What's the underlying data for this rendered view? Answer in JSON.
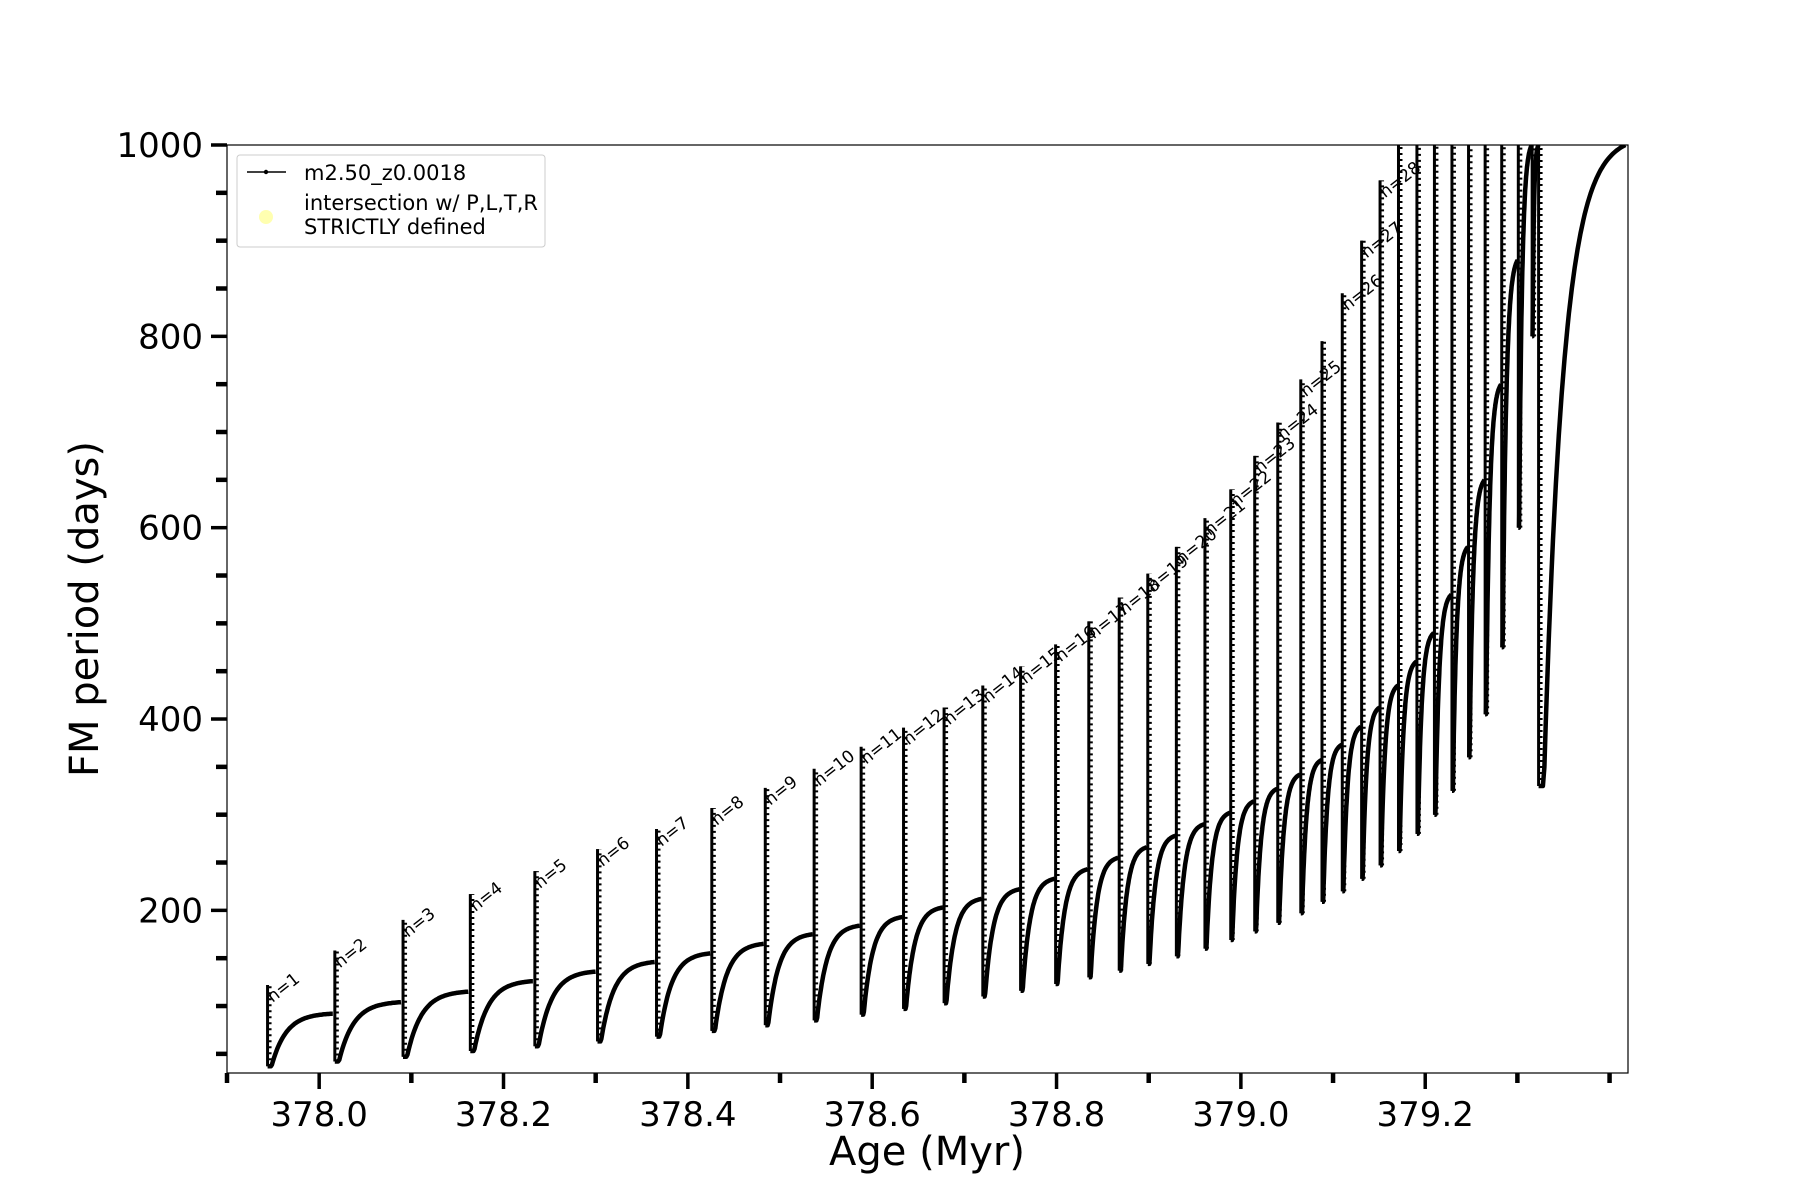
{
  "chart_data": {
    "type": "line",
    "xlabel": "Age (Myr)",
    "ylabel": "FM period (days)",
    "xlim": [
      377.9,
      379.42
    ],
    "ylim": [
      30,
      1000
    ],
    "xticks": [
      378.0,
      378.2,
      378.4,
      378.6,
      378.8,
      379.0,
      379.2
    ],
    "xtick_labels": [
      "378.0",
      "378.2",
      "378.4",
      "378.6",
      "378.8",
      "379.0",
      "379.2"
    ],
    "yticks": [
      200,
      400,
      600,
      800,
      1000
    ],
    "ytick_labels": [
      "200",
      "400",
      "600",
      "800",
      "1000"
    ],
    "grid": false,
    "legend": {
      "placement": "upper-left",
      "entries": [
        {
          "label": "m2.50_z0.0018",
          "marker": "line-dot",
          "color": "#000000"
        },
        {
          "label": "intersection w/ P,L,T,R STRICTLY defined",
          "marker": "circle",
          "color": "#ffffb0",
          "lines": [
            "intersection w/ P,L,T,R",
            "STRICTLY defined"
          ]
        }
      ]
    },
    "series": [
      {
        "name": "m2.50_z0.0018",
        "color": "#000000",
        "pulses": [
          {
            "n": 1,
            "age": 377.944,
            "base": 37,
            "peak": 122,
            "plateau": 92
          },
          {
            "n": 2,
            "age": 378.017,
            "base": 42,
            "peak": 158,
            "plateau": 104
          },
          {
            "n": 3,
            "age": 378.091,
            "base": 47,
            "peak": 190,
            "plateau": 115
          },
          {
            "n": 4,
            "age": 378.164,
            "base": 53,
            "peak": 217,
            "plateau": 126
          },
          {
            "n": 5,
            "age": 378.234,
            "base": 58,
            "peak": 241,
            "plateau": 136
          },
          {
            "n": 6,
            "age": 378.302,
            "base": 63,
            "peak": 264,
            "plateau": 146
          },
          {
            "n": 7,
            "age": 378.366,
            "base": 68,
            "peak": 285,
            "plateau": 155
          },
          {
            "n": 8,
            "age": 378.426,
            "base": 74,
            "peak": 307,
            "plateau": 165
          },
          {
            "n": 9,
            "age": 378.484,
            "base": 80,
            "peak": 328,
            "plateau": 175
          },
          {
            "n": 10,
            "age": 378.537,
            "base": 85,
            "peak": 348,
            "plateau": 184
          },
          {
            "n": 11,
            "age": 378.588,
            "base": 91,
            "peak": 371,
            "plateau": 193
          },
          {
            "n": 12,
            "age": 378.634,
            "base": 97,
            "peak": 391,
            "plateau": 203
          },
          {
            "n": 13,
            "age": 378.678,
            "base": 103,
            "peak": 412,
            "plateau": 212
          },
          {
            "n": 14,
            "age": 378.72,
            "base": 110,
            "peak": 435,
            "plateau": 222
          },
          {
            "n": 15,
            "age": 378.761,
            "base": 116,
            "peak": 455,
            "plateau": 233
          },
          {
            "n": 16,
            "age": 378.799,
            "base": 123,
            "peak": 478,
            "plateau": 243
          },
          {
            "n": 17,
            "age": 378.835,
            "base": 130,
            "peak": 502,
            "plateau": 255
          },
          {
            "n": 18,
            "age": 378.868,
            "base": 137,
            "peak": 527,
            "plateau": 266
          },
          {
            "n": 19,
            "age": 378.899,
            "base": 144,
            "peak": 552,
            "plateau": 278
          },
          {
            "n": 20,
            "age": 378.93,
            "base": 152,
            "peak": 580,
            "plateau": 290
          },
          {
            "n": 21,
            "age": 378.961,
            "base": 160,
            "peak": 610,
            "plateau": 302
          },
          {
            "n": 22,
            "age": 378.989,
            "base": 169,
            "peak": 640,
            "plateau": 314
          },
          {
            "n": 23,
            "age": 379.015,
            "base": 178,
            "peak": 675,
            "plateau": 327
          },
          {
            "n": 24,
            "age": 379.04,
            "base": 187,
            "peak": 710,
            "plateau": 342
          },
          {
            "n": 25,
            "age": 379.065,
            "base": 197,
            "peak": 755,
            "plateau": 357
          },
          {
            "n": 26,
            "age": 379.088,
            "base": 209,
            "peak": 795,
            "plateau": 373
          },
          {
            "n": 27,
            "age": 379.11,
            "base": 220,
            "peak": 845,
            "plateau": 392
          },
          {
            "n": 28,
            "age": 379.131,
            "base": 233,
            "peak": 900,
            "plateau": 412
          },
          {
            "n": 29,
            "age": 379.151,
            "base": 247,
            "peak": 963,
            "plateau": 435
          },
          {
            "n": 30,
            "age": 379.171,
            "base": 262,
            "peak": 1000,
            "plateau": 460
          },
          {
            "n": 31,
            "age": 379.191,
            "base": 280,
            "peak": 1000,
            "plateau": 490
          },
          {
            "n": 32,
            "age": 379.21,
            "base": 300,
            "peak": 1000,
            "plateau": 530
          },
          {
            "n": 33,
            "age": 379.229,
            "base": 325,
            "peak": 1000,
            "plateau": 580
          },
          {
            "n": 34,
            "age": 379.247,
            "base": 360,
            "peak": 1000,
            "plateau": 650
          },
          {
            "n": 35,
            "age": 379.265,
            "base": 405,
            "peak": 1000,
            "plateau": 750
          },
          {
            "n": 36,
            "age": 379.283,
            "base": 475,
            "peak": 1000,
            "plateau": 880
          },
          {
            "n": 37,
            "age": 379.301,
            "base": 600,
            "peak": 1000,
            "plateau": 1000
          },
          {
            "n": 38,
            "age": 379.316,
            "base": 800,
            "peak": 1000,
            "plateau": 1000
          },
          {
            "n": 39,
            "age": 379.323,
            "base": 330,
            "peak": 1000,
            "plateau": 1000
          }
        ]
      }
    ],
    "annotations": [
      {
        "text": "n=1",
        "x": 377.944,
        "y": 122
      },
      {
        "text": "n=2",
        "x": 378.017,
        "y": 158
      },
      {
        "text": "n=3",
        "x": 378.091,
        "y": 190
      },
      {
        "text": "n=4",
        "x": 378.164,
        "y": 217
      },
      {
        "text": "n=5",
        "x": 378.234,
        "y": 241
      },
      {
        "text": "n=6",
        "x": 378.302,
        "y": 264
      },
      {
        "text": "n=7",
        "x": 378.366,
        "y": 285
      },
      {
        "text": "n=8",
        "x": 378.426,
        "y": 307
      },
      {
        "text": "n=9",
        "x": 378.484,
        "y": 328
      },
      {
        "text": "n=10",
        "x": 378.537,
        "y": 348
      },
      {
        "text": "n=11",
        "x": 378.588,
        "y": 371
      },
      {
        "text": "n=12",
        "x": 378.634,
        "y": 391
      },
      {
        "text": "n=13",
        "x": 378.678,
        "y": 412
      },
      {
        "text": "n=14",
        "x": 378.72,
        "y": 435
      },
      {
        "text": "n=15",
        "x": 378.761,
        "y": 455
      },
      {
        "text": "n=16",
        "x": 378.799,
        "y": 478
      },
      {
        "text": "n=17",
        "x": 378.835,
        "y": 502
      },
      {
        "text": "n=18",
        "x": 378.868,
        "y": 527
      },
      {
        "text": "n=19",
        "x": 378.899,
        "y": 552
      },
      {
        "text": "n=20",
        "x": 378.93,
        "y": 580
      },
      {
        "text": "n=21",
        "x": 378.961,
        "y": 610
      },
      {
        "text": "n=22",
        "x": 378.989,
        "y": 640
      },
      {
        "text": "n=23",
        "x": 379.015,
        "y": 675
      },
      {
        "text": "n=24",
        "x": 379.04,
        "y": 710
      },
      {
        "text": "n=25",
        "x": 379.065,
        "y": 755
      },
      {
        "text": "n=26",
        "x": 379.11,
        "y": 845
      },
      {
        "text": "n=27",
        "x": 379.131,
        "y": 900
      },
      {
        "text": "n=28",
        "x": 379.151,
        "y": 963
      }
    ]
  }
}
